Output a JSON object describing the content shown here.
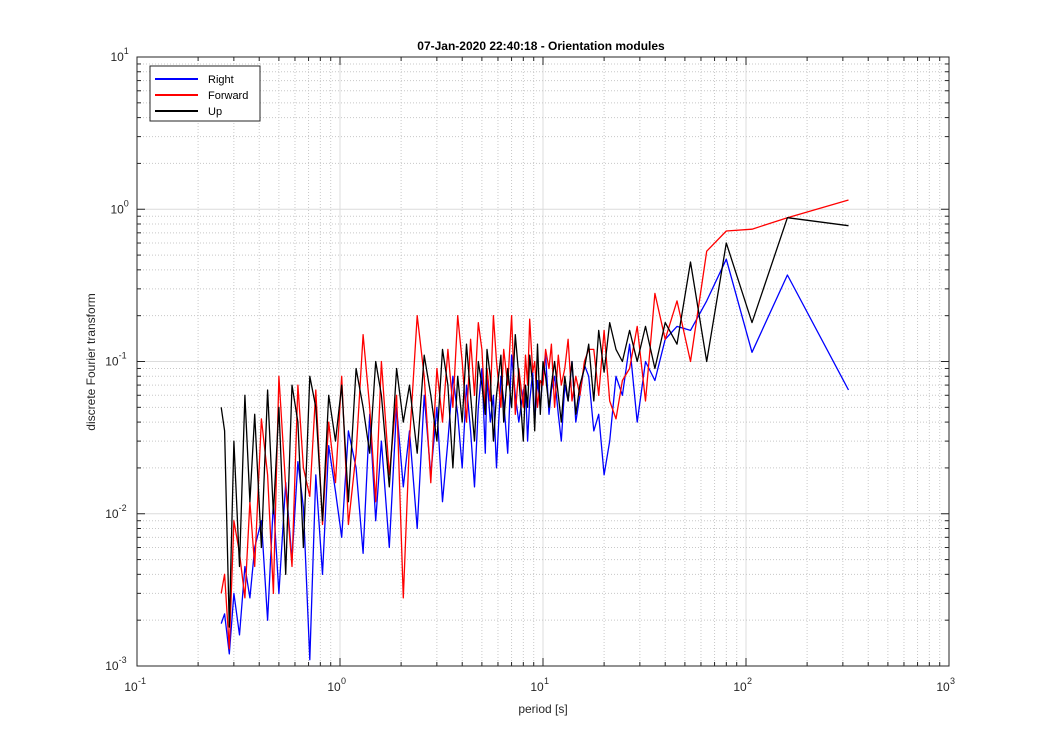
{
  "chart_data": {
    "type": "line",
    "title": "07-Jan-2020 22:40:18 - Orientation modules",
    "xlabel": "period [s]",
    "ylabel": "discrete Fourier transform",
    "xscale": "log",
    "yscale": "log",
    "xlim": [
      0.1,
      1000
    ],
    "ylim": [
      0.001,
      10
    ],
    "x_ticks": [
      {
        "base": "10",
        "exp": "-1"
      },
      {
        "base": "10",
        "exp": "0"
      },
      {
        "base": "10",
        "exp": "1"
      },
      {
        "base": "10",
        "exp": "2"
      },
      {
        "base": "10",
        "exp": "3"
      }
    ],
    "y_ticks": [
      {
        "base": "10",
        "exp": "-3"
      },
      {
        "base": "10",
        "exp": "-2"
      },
      {
        "base": "10",
        "exp": "-1"
      },
      {
        "base": "10",
        "exp": "0"
      },
      {
        "base": "10",
        "exp": "1"
      }
    ],
    "grid": true,
    "legend_position": "top-left",
    "series": [
      {
        "name": "Right",
        "color": "#0000ff",
        "x": [
          320,
          160,
          107,
          80,
          64,
          53.3,
          45.7,
          40,
          35.6,
          32,
          29.1,
          26.7,
          24.6,
          22.9,
          21.3,
          20,
          18.8,
          17.8,
          16.8,
          16,
          15.2,
          14.5,
          13.9,
          13.3,
          12.8,
          12.3,
          11.9,
          11.4,
          11,
          10.7,
          10.3,
          10,
          9.7,
          9.4,
          9.1,
          8.9,
          8.6,
          8.4,
          8.2,
          8,
          7.6,
          7.3,
          7,
          6.7,
          6.4,
          6.2,
          5.9,
          5.7,
          5.5,
          5.3,
          5.2,
          5,
          4.8,
          4.6,
          4.4,
          4.2,
          4,
          3.8,
          3.6,
          3.4,
          3.2,
          3,
          2.8,
          2.6,
          2.4,
          2.2,
          2.05,
          1.9,
          1.75,
          1.6,
          1.5,
          1.4,
          1.3,
          1.2,
          1.1,
          1.02,
          0.95,
          0.88,
          0.82,
          0.76,
          0.71,
          0.66,
          0.62,
          0.58,
          0.54,
          0.5,
          0.47,
          0.44,
          0.41,
          0.38,
          0.36,
          0.34,
          0.32,
          0.3,
          0.285,
          0.27,
          0.26
        ],
        "y": [
          0.065,
          0.37,
          0.115,
          0.47,
          0.25,
          0.16,
          0.17,
          0.14,
          0.075,
          0.1,
          0.04,
          0.13,
          0.06,
          0.08,
          0.03,
          0.018,
          0.045,
          0.035,
          0.08,
          0.095,
          0.06,
          0.04,
          0.1,
          0.055,
          0.07,
          0.03,
          0.045,
          0.08,
          0.065,
          0.045,
          0.11,
          0.085,
          0.05,
          0.075,
          0.04,
          0.085,
          0.055,
          0.03,
          0.07,
          0.065,
          0.04,
          0.06,
          0.11,
          0.025,
          0.055,
          0.08,
          0.02,
          0.06,
          0.04,
          0.08,
          0.025,
          0.09,
          0.05,
          0.015,
          0.035,
          0.07,
          0.02,
          0.045,
          0.08,
          0.03,
          0.012,
          0.05,
          0.018,
          0.06,
          0.008,
          0.035,
          0.015,
          0.05,
          0.006,
          0.03,
          0.009,
          0.045,
          0.0055,
          0.02,
          0.035,
          0.007,
          0.014,
          0.028,
          0.004,
          0.018,
          0.0011,
          0.011,
          0.022,
          0.005,
          0.016,
          0.003,
          0.012,
          0.002,
          0.009,
          0.006,
          0.0028,
          0.0045,
          0.0016,
          0.003,
          0.0012,
          0.0022,
          0.0019
        ]
      },
      {
        "name": "Forward",
        "color": "#ff0000",
        "x": [
          320,
          160,
          107,
          80,
          64,
          53.3,
          45.7,
          40,
          35.6,
          32,
          29.1,
          26.7,
          24.6,
          22.9,
          21.3,
          20,
          18.8,
          17.8,
          16.8,
          16,
          15.2,
          14.5,
          13.9,
          13.3,
          12.8,
          12.3,
          11.9,
          11.4,
          11,
          10.7,
          10.3,
          10,
          9.7,
          9.4,
          9.1,
          8.9,
          8.6,
          8.4,
          8.2,
          8,
          7.6,
          7.3,
          7,
          6.7,
          6.4,
          6.2,
          5.9,
          5.7,
          5.5,
          5.3,
          5.2,
          5,
          4.8,
          4.6,
          4.4,
          4.2,
          4,
          3.8,
          3.6,
          3.4,
          3.2,
          3,
          2.8,
          2.6,
          2.4,
          2.2,
          2.05,
          1.9,
          1.75,
          1.6,
          1.5,
          1.4,
          1.3,
          1.2,
          1.1,
          1.02,
          0.95,
          0.88,
          0.82,
          0.76,
          0.71,
          0.66,
          0.62,
          0.58,
          0.54,
          0.5,
          0.47,
          0.44,
          0.41,
          0.38,
          0.36,
          0.34,
          0.32,
          0.3,
          0.285,
          0.27,
          0.26
        ],
        "y": [
          1.15,
          0.88,
          0.74,
          0.72,
          0.53,
          0.1,
          0.25,
          0.14,
          0.28,
          0.055,
          0.17,
          0.09,
          0.075,
          0.042,
          0.055,
          0.16,
          0.06,
          0.12,
          0.12,
          0.1,
          0.06,
          0.08,
          0.055,
          0.14,
          0.09,
          0.07,
          0.11,
          0.05,
          0.13,
          0.09,
          0.12,
          0.07,
          0.075,
          0.05,
          0.1,
          0.085,
          0.19,
          0.07,
          0.11,
          0.05,
          0.09,
          0.045,
          0.2,
          0.07,
          0.12,
          0.05,
          0.1,
          0.2,
          0.055,
          0.09,
          0.045,
          0.12,
          0.18,
          0.06,
          0.14,
          0.04,
          0.1,
          0.2,
          0.05,
          0.12,
          0.04,
          0.09,
          0.016,
          0.08,
          0.2,
          0.03,
          0.0028,
          0.06,
          0.018,
          0.1,
          0.012,
          0.05,
          0.15,
          0.025,
          0.0085,
          0.08,
          0.016,
          0.04,
          0.0085,
          0.065,
          0.013,
          0.02,
          0.07,
          0.0045,
          0.015,
          0.08,
          0.003,
          0.018,
          0.042,
          0.0045,
          0.012,
          0.0028,
          0.0055,
          0.009,
          0.0013,
          0.004,
          0.003
        ]
      },
      {
        "name": "Up",
        "color": "#000000",
        "x": [
          320,
          160,
          107,
          80,
          64,
          53.3,
          45.7,
          40,
          35.6,
          32,
          29.1,
          26.7,
          24.6,
          22.9,
          21.3,
          20,
          18.8,
          17.8,
          16.8,
          16,
          15.2,
          14.5,
          13.9,
          13.3,
          12.8,
          12.3,
          11.9,
          11.4,
          11,
          10.7,
          10.3,
          10,
          9.7,
          9.4,
          9.1,
          8.9,
          8.6,
          8.4,
          8.2,
          8,
          7.6,
          7.3,
          7,
          6.7,
          6.4,
          6.2,
          5.9,
          5.7,
          5.5,
          5.3,
          5.2,
          5,
          4.8,
          4.6,
          4.4,
          4.2,
          4,
          3.8,
          3.6,
          3.4,
          3.2,
          3,
          2.8,
          2.6,
          2.4,
          2.2,
          2.05,
          1.9,
          1.75,
          1.6,
          1.5,
          1.4,
          1.3,
          1.2,
          1.1,
          1.02,
          0.95,
          0.88,
          0.82,
          0.76,
          0.71,
          0.66,
          0.62,
          0.58,
          0.54,
          0.5,
          0.47,
          0.44,
          0.41,
          0.38,
          0.36,
          0.34,
          0.32,
          0.3,
          0.285,
          0.27,
          0.26
        ],
        "y": [
          0.78,
          0.88,
          0.18,
          0.6,
          0.1,
          0.45,
          0.13,
          0.18,
          0.09,
          0.17,
          0.1,
          0.16,
          0.1,
          0.12,
          0.18,
          0.085,
          0.16,
          0.055,
          0.13,
          0.09,
          0.07,
          0.045,
          0.1,
          0.055,
          0.08,
          0.04,
          0.06,
          0.1,
          0.07,
          0.05,
          0.08,
          0.1,
          0.045,
          0.13,
          0.035,
          0.07,
          0.11,
          0.05,
          0.07,
          0.03,
          0.08,
          0.15,
          0.05,
          0.09,
          0.04,
          0.11,
          0.06,
          0.03,
          0.08,
          0.12,
          0.045,
          0.07,
          0.1,
          0.03,
          0.06,
          0.13,
          0.04,
          0.08,
          0.02,
          0.07,
          0.12,
          0.03,
          0.06,
          0.11,
          0.025,
          0.07,
          0.04,
          0.09,
          0.015,
          0.06,
          0.1,
          0.025,
          0.05,
          0.09,
          0.012,
          0.07,
          0.03,
          0.06,
          0.009,
          0.05,
          0.08,
          0.006,
          0.04,
          0.07,
          0.004,
          0.05,
          0.01,
          0.065,
          0.006,
          0.045,
          0.012,
          0.06,
          0.0045,
          0.03,
          0.0018,
          0.035,
          0.05
        ]
      }
    ]
  }
}
